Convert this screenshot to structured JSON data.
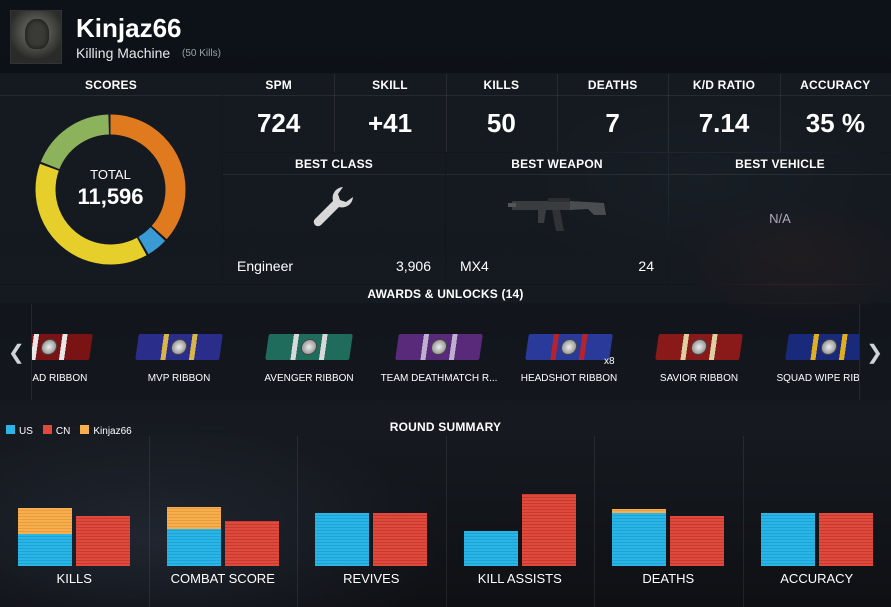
{
  "player": {
    "name": "Kinjaz66",
    "title": "Killing Machine",
    "sub": "(50 Kills)"
  },
  "scores": {
    "header": "SCORES",
    "total_label": "TOTAL",
    "total_value": "11,596",
    "segments": [
      {
        "color": "#e07a1e",
        "fraction": 0.37
      },
      {
        "color": "#3a9bd4",
        "fraction": 0.05
      },
      {
        "color": "#e6cf2a",
        "fraction": 0.39
      },
      {
        "color": "#8db25c",
        "fraction": 0.19
      }
    ]
  },
  "stats": [
    {
      "label": "SPM",
      "value": "724"
    },
    {
      "label": "SKILL",
      "value": "+41"
    },
    {
      "label": "KILLS",
      "value": "50"
    },
    {
      "label": "DEATHS",
      "value": "7"
    },
    {
      "label": "K/D RATIO",
      "value": "7.14"
    },
    {
      "label": "ACCURACY",
      "value": "35 %"
    }
  ],
  "best": {
    "class_header": "BEST CLASS",
    "class_name": "Engineer",
    "class_value": "3,906",
    "class_icon": "wrench-icon",
    "weapon_header": "BEST WEAPON",
    "weapon_name": "MX4",
    "weapon_value": "24",
    "weapon_icon": "rifle-icon",
    "vehicle_header": "BEST VEHICLE",
    "vehicle_value": "N/A"
  },
  "awards": {
    "header": "AWARDS & UNLOCKS (14)",
    "items": [
      {
        "label": "SQUAD RIBBON",
        "colors": [
          "#7a1414",
          "#e8e8e8",
          "#7a1414"
        ],
        "count": ""
      },
      {
        "label": "MVP RIBBON",
        "colors": [
          "#2a2e8a",
          "#d9b64a",
          "#2a2e8a"
        ],
        "count": ""
      },
      {
        "label": "AVENGER RIBBON",
        "colors": [
          "#1f6c5c",
          "#d9d9d9",
          "#1f6c5c"
        ],
        "count": ""
      },
      {
        "label": "TEAM DEATHMATCH R...",
        "colors": [
          "#5a2a7a",
          "#bfb0d0",
          "#5a2a7a"
        ],
        "count": ""
      },
      {
        "label": "HEADSHOT RIBBON",
        "colors": [
          "#2a3a9a",
          "#b8222a",
          "#2a3a9a"
        ],
        "count": "x8"
      },
      {
        "label": "SAVIOR RIBBON",
        "colors": [
          "#8a1a1a",
          "#e0d0a0",
          "#8a1a1a"
        ],
        "count": ""
      },
      {
        "label": "SQUAD WIPE RIBBON",
        "colors": [
          "#1a2a7a",
          "#e0b020",
          "#1a2a7a"
        ],
        "count": ""
      }
    ]
  },
  "summary": {
    "header": "ROUND SUMMARY",
    "legend": [
      {
        "label": "US",
        "color": "#29b6e6"
      },
      {
        "label": "CN",
        "color": "#e04a3d"
      },
      {
        "label": "Kinjaz66",
        "color": "#f6ae4e"
      }
    ],
    "groups": [
      {
        "label": "KILLS",
        "us": 0.44,
        "kj": 0.37,
        "cn": 0.69
      },
      {
        "label": "COMBAT SCORE",
        "us": 0.52,
        "kj": 0.3,
        "cn": 0.63
      },
      {
        "label": "REVIVES",
        "us": 0.74,
        "kj": 0,
        "cn": 0.74
      },
      {
        "label": "KILL ASSISTS",
        "us": 0.49,
        "kj": 0,
        "cn": 1.0
      },
      {
        "label": "DEATHS",
        "us": 0.74,
        "kj": 0.05,
        "cn": 0.69
      },
      {
        "label": "ACCURACY",
        "us": 0.74,
        "kj": 0,
        "cn": 0.74
      }
    ]
  }
}
